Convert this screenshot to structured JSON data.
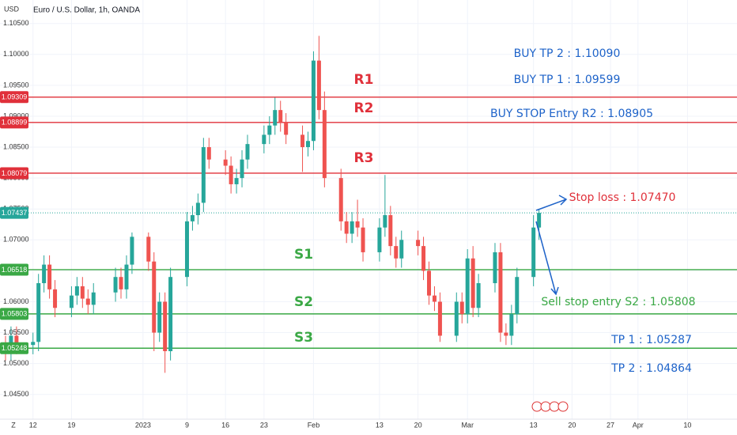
{
  "chart_data": {
    "type": "candlestick",
    "title": "Euro / U.S. Dollar, 1h, OANDA",
    "y_label": "USD",
    "timezone_label": "Z",
    "up_color": "#26a69a",
    "down_color": "#ef5350",
    "grid": true,
    "xlim": [
      "2022-12-06",
      "2023-04-19"
    ],
    "ylim": [
      1.041,
      1.1088
    ],
    "yticks": [
      {
        "value": 1.045,
        "label": "1.04500"
      },
      {
        "value": 1.05,
        "label": "1.05000"
      },
      {
        "value": 1.055,
        "label": "1.05500"
      },
      {
        "value": 1.06,
        "label": "1.06000"
      },
      {
        "value": 1.065,
        "label": "1.06500"
      },
      {
        "value": 1.07,
        "label": "1.07000"
      },
      {
        "value": 1.075,
        "label": "1.07500"
      },
      {
        "value": 1.08,
        "label": "1.08000"
      },
      {
        "value": 1.085,
        "label": "1.08500"
      },
      {
        "value": 1.09,
        "label": "1.09000"
      },
      {
        "value": 1.095,
        "label": "1.09500"
      },
      {
        "value": 1.1,
        "label": "1.10000"
      },
      {
        "value": 1.105,
        "label": "1.10500"
      }
    ],
    "xticks": [
      {
        "value": "2022-12-12",
        "label": "12"
      },
      {
        "value": "2022-12-19",
        "label": "19"
      },
      {
        "value": "2023-01-01",
        "label": "2023"
      },
      {
        "value": "2023-01-09",
        "label": "9"
      },
      {
        "value": "2023-01-16",
        "label": "16"
      },
      {
        "value": "2023-01-23",
        "label": "23"
      },
      {
        "value": "2023-02-01",
        "label": "Feb"
      },
      {
        "value": "2023-02-13",
        "label": "13"
      },
      {
        "value": "2023-02-20",
        "label": "20"
      },
      {
        "value": "2023-03-01",
        "label": "Mar"
      },
      {
        "value": "2023-03-13",
        "label": "13"
      },
      {
        "value": "2023-03-20",
        "label": "20"
      },
      {
        "value": "2023-03-27",
        "label": "27"
      },
      {
        "value": "2023-04-01",
        "label": "Apr"
      },
      {
        "value": "2023-04-10",
        "label": "10"
      }
    ],
    "x": [
      "2022-12-07",
      "2022-12-08",
      "2022-12-09",
      "2022-12-12",
      "2022-12-13",
      "2022-12-14",
      "2022-12-15",
      "2022-12-16",
      "2022-12-19",
      "2022-12-20",
      "2022-12-21",
      "2022-12-22",
      "2022-12-23",
      "2022-12-27",
      "2022-12-28",
      "2022-12-29",
      "2022-12-30",
      "2023-01-02",
      "2023-01-03",
      "2023-01-04",
      "2023-01-05",
      "2023-01-06",
      "2023-01-09",
      "2023-01-10",
      "2023-01-11",
      "2023-01-12",
      "2023-01-13",
      "2023-01-16",
      "2023-01-17",
      "2023-01-18",
      "2023-01-19",
      "2023-01-20",
      "2023-01-23",
      "2023-01-24",
      "2023-01-25",
      "2023-01-26",
      "2023-01-27",
      "2023-01-30",
      "2023-01-31",
      "2023-02-01",
      "2023-02-02",
      "2023-02-03",
      "2023-02-06",
      "2023-02-07",
      "2023-02-08",
      "2023-02-09",
      "2023-02-10",
      "2023-02-13",
      "2023-02-14",
      "2023-02-15",
      "2023-02-16",
      "2023-02-17",
      "2023-02-20",
      "2023-02-21",
      "2023-02-22",
      "2023-02-23",
      "2023-02-24",
      "2023-02-27",
      "2023-02-28",
      "2023-03-01",
      "2023-03-02",
      "2023-03-03",
      "2023-03-06",
      "2023-03-07",
      "2023-03-08",
      "2023-03-09",
      "2023-03-10",
      "2023-03-13",
      "2023-03-14"
    ],
    "open": [
      1.053,
      1.052,
      1.0545,
      1.053,
      1.0535,
      1.063,
      1.066,
      1.062,
      1.059,
      1.061,
      1.0625,
      1.0605,
      1.0595,
      1.0615,
      1.064,
      1.062,
      1.066,
      1.0705,
      1.0665,
      1.055,
      1.06,
      1.052,
      1.064,
      1.073,
      1.074,
      1.076,
      1.085,
      1.083,
      1.082,
      1.079,
      1.08,
      1.083,
      1.0855,
      1.087,
      1.0885,
      1.091,
      1.089,
      1.087,
      1.085,
      1.086,
      1.099,
      1.091,
      1.08,
      1.073,
      1.071,
      1.073,
      1.072,
      1.068,
      1.072,
      1.074,
      1.069,
      1.067,
      1.07,
      1.069,
      1.065,
      1.061,
      1.06,
      1.0545,
      1.06,
      1.058,
      1.067,
      1.059,
      1.063,
      1.068,
      1.055,
      1.0545,
      1.058,
      1.064,
      1.072
    ],
    "high": [
      1.0545,
      1.056,
      1.056,
      1.055,
      1.0645,
      1.0675,
      1.0675,
      1.0635,
      1.0625,
      1.064,
      1.064,
      1.062,
      1.063,
      1.0655,
      1.0655,
      1.0675,
      1.0712,
      1.0712,
      1.068,
      1.0615,
      1.0615,
      1.0655,
      1.0745,
      1.0755,
      1.0775,
      1.0865,
      1.0865,
      1.0845,
      1.0835,
      1.0815,
      1.0845,
      1.087,
      1.0885,
      1.09,
      1.093,
      1.0925,
      1.0905,
      1.0885,
      1.0875,
      1.1005,
      1.103,
      1.094,
      1.0815,
      1.0745,
      1.0745,
      1.0765,
      1.0735,
      1.0735,
      1.0805,
      1.0755,
      1.0705,
      1.0715,
      1.0715,
      1.0705,
      1.0665,
      1.0625,
      1.0615,
      1.0615,
      1.0615,
      1.0685,
      1.069,
      1.0645,
      1.0695,
      1.0695,
      1.0565,
      1.0595,
      1.0655,
      1.074,
      1.075
    ],
    "low": [
      1.0505,
      1.0505,
      1.0515,
      1.0515,
      1.052,
      1.0615,
      1.0605,
      1.0575,
      1.0575,
      1.0595,
      1.059,
      1.058,
      1.058,
      1.06,
      1.0605,
      1.0605,
      1.0645,
      1.065,
      1.052,
      1.0535,
      1.0485,
      1.0505,
      1.0625,
      1.0715,
      1.0725,
      1.0745,
      1.0815,
      1.0805,
      1.0775,
      1.0775,
      1.0785,
      1.0815,
      1.084,
      1.0855,
      1.087,
      1.0875,
      1.0855,
      1.081,
      1.0835,
      1.0845,
      1.0895,
      1.0785,
      1.0715,
      1.0695,
      1.0695,
      1.0705,
      1.0665,
      1.0665,
      1.0705,
      1.0675,
      1.0655,
      1.0655,
      1.0675,
      1.0635,
      1.0595,
      1.0585,
      1.0535,
      1.0535,
      1.0565,
      1.0565,
      1.0575,
      1.0575,
      1.0615,
      1.0535,
      1.053,
      1.053,
      1.0565,
      1.0625,
      1.07
    ],
    "close": [
      1.052,
      1.0545,
      1.053,
      1.0535,
      1.063,
      1.066,
      1.062,
      1.059,
      1.061,
      1.0625,
      1.0605,
      1.0595,
      1.0615,
      1.064,
      1.062,
      1.066,
      1.0705,
      1.0665,
      1.055,
      1.06,
      1.052,
      1.064,
      1.073,
      1.074,
      1.076,
      1.085,
      1.083,
      1.082,
      1.079,
      1.08,
      1.083,
      1.0855,
      1.087,
      1.0885,
      1.091,
      1.089,
      1.087,
      1.085,
      1.086,
      1.099,
      1.091,
      1.08,
      1.073,
      1.071,
      1.073,
      1.072,
      1.068,
      1.072,
      1.074,
      1.069,
      1.067,
      1.07,
      1.069,
      1.065,
      1.061,
      1.06,
      1.0545,
      1.06,
      1.058,
      1.067,
      1.059,
      1.063,
      1.068,
      1.055,
      1.0545,
      1.058,
      1.064,
      1.072,
      1.07437
    ],
    "levels": [
      {
        "value": 1.09309,
        "label": "1.09309",
        "color": "#e0303a",
        "style": "solid"
      },
      {
        "value": 1.08899,
        "label": "1.08899",
        "color": "#e0303a",
        "style": "solid"
      },
      {
        "value": 1.08079,
        "label": "1.08079",
        "color": "#e0303a",
        "style": "solid"
      },
      {
        "value": 1.07437,
        "label": "1.07437",
        "color": "#26a69a",
        "style": "dotted"
      },
      {
        "value": 1.06518,
        "label": "1.06518",
        "color": "#3aa845",
        "style": "solid"
      },
      {
        "value": 1.05803,
        "label": "1.05803",
        "color": "#3aa845",
        "style": "solid"
      },
      {
        "value": 1.05248,
        "label": "1.05248",
        "color": "#3aa845",
        "style": "solid"
      }
    ],
    "annotations": [
      "R1",
      "R2",
      "R3",
      "S1",
      "S2",
      "S3",
      "BUY TP 2 : 1.10090",
      "BUY TP 1 : 1.09599",
      "BUY STOP Entry R2 : 1.08905",
      "Stop loss : 1.07470",
      "Sell stop entry S2 : 1.05808",
      "TP 1 : 1.05287",
      "TP 2 : 1.04864"
    ]
  }
}
